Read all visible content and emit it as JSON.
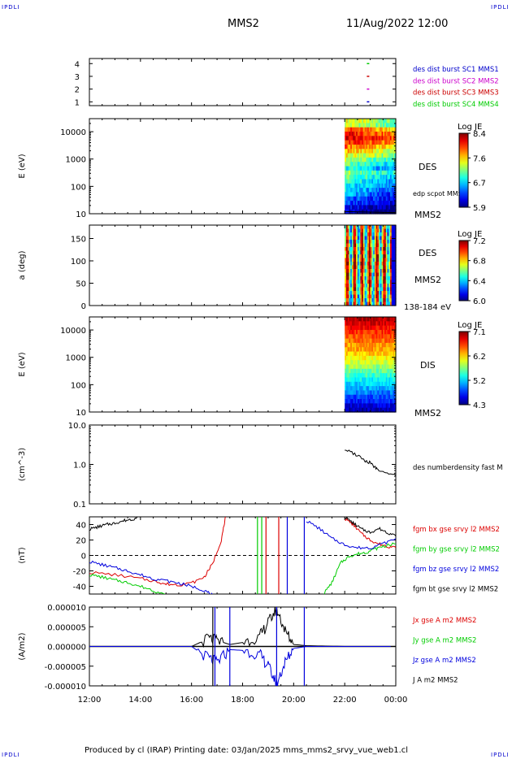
{
  "page": {
    "corner_label": "IPDLI",
    "spacecraft": "MMS2",
    "date_time": "11/Aug/2022 12:00",
    "footer": "Produced by cl (IRAP)   Printing date: 03/Jan/2025   mms_mms2_srvy_vue_web1.cl"
  },
  "colors": {
    "mms1": "#0000cc",
    "mms2": "#cc00cc",
    "mms3": "#cc0000",
    "mms4": "#00cc00",
    "bx": "#dd0000",
    "by": "#00cc00",
    "bz": "#0000dd",
    "bt": "#000000"
  },
  "chart_data": [
    {
      "id": "availability",
      "type": "scatter",
      "xlim": [
        "12:00",
        "00:00"
      ],
      "ylim": [
        0.7,
        4.4
      ],
      "yticks": [
        "1",
        "2",
        "3",
        "4"
      ],
      "legend": [
        "des dist burst SC1 MMS1",
        "des dist burst SC2 MMS2",
        "des dist burst SC3 MMS3",
        "des dist burst SC4 MMS4"
      ],
      "series": [
        {
          "sc": 1,
          "x": [
            "22:52"
          ]
        },
        {
          "sc": 2,
          "x": [
            "22:52"
          ]
        },
        {
          "sc": 3,
          "x": [
            "22:52"
          ]
        },
        {
          "sc": 4,
          "x": [
            "22:52"
          ]
        }
      ]
    },
    {
      "id": "des-energy",
      "type": "heatmap",
      "ylabel": "E (eV)",
      "yscale": "log",
      "ylim": [
        10,
        30000
      ],
      "yticks": [
        "10",
        "100",
        "1000",
        "10000"
      ],
      "label": "DES",
      "overlay_label": "edp scpot MMS2",
      "sc_label": "MMS2",
      "colorbar": {
        "title": "Log JE",
        "min": 5.9,
        "max": 8.4,
        "ticks": [
          "8.4",
          "7.6",
          "6.7",
          "5.9"
        ]
      },
      "data_start": "22:00",
      "data_end": "00:00"
    },
    {
      "id": "des-pitch",
      "type": "heatmap",
      "ylabel": "a (deg)",
      "ylim": [
        0,
        180
      ],
      "yticks": [
        "0",
        "50",
        "100",
        "150"
      ],
      "label": "DES",
      "sc_label": "MMS2",
      "energy_label": "138-184 eV",
      "colorbar": {
        "title": "Log JE",
        "min": 6.0,
        "max": 7.2,
        "ticks": [
          "7.2",
          "6.8",
          "6.4",
          "6.0"
        ]
      },
      "data_start": "22:00",
      "data_end": "00:00"
    },
    {
      "id": "dis-energy",
      "type": "heatmap",
      "ylabel": "E (eV)",
      "yscale": "log",
      "ylim": [
        10,
        30000
      ],
      "yticks": [
        "10",
        "100",
        "1000",
        "10000"
      ],
      "label": "DIS",
      "sc_label": "MMS2",
      "colorbar": {
        "title": "Log JE",
        "min": 4.3,
        "max": 7.1,
        "ticks": [
          "7.1",
          "6.2",
          "5.2",
          "4.3"
        ]
      },
      "data_start": "22:00",
      "data_end": "00:00"
    },
    {
      "id": "density",
      "type": "line",
      "ylabel": "(cm^-3)",
      "yscale": "log",
      "ylim": [
        0.1,
        10.0
      ],
      "yticks": [
        "0.1",
        "1.0",
        "10.0"
      ],
      "legend": [
        "des numberdensity fast M"
      ],
      "series": [
        {
          "name": "des numberdensity fast M",
          "x": [
            "22:00",
            "22:20",
            "22:40",
            "22:50",
            "23:00",
            "23:10",
            "23:20",
            "23:40",
            "00:00"
          ],
          "y": [
            2.4,
            1.9,
            1.5,
            1.2,
            1.1,
            0.85,
            0.75,
            0.6,
            0.52
          ]
        }
      ]
    },
    {
      "id": "fgm",
      "type": "line",
      "ylabel": "(nT)",
      "ylim": [
        -50,
        50
      ],
      "yticks": [
        "-40",
        "-20",
        "0",
        "20",
        "40"
      ],
      "legend": [
        "fgm bx gse srvy l2 MMS2",
        "fgm by gse srvy l2 MMS2",
        "fgm bz gse srvy l2 MMS2",
        "fgm bt gse srvy l2 MMS2"
      ],
      "series": [
        {
          "name": "fgm bx gse srvy l2 MMS2",
          "x": [
            "12:00",
            "13:00",
            "14:00",
            "14:40",
            "15:00",
            "15:30",
            "16:00",
            "16:30",
            "16:50",
            "17:10",
            "17:20"
          ],
          "y": [
            -22,
            -25,
            -30,
            -34,
            -37,
            -38,
            -36,
            -28,
            -10,
            20,
            50
          ]
        },
        {
          "name": "fgm by gse srvy l2 MMS2",
          "x": [
            "12:00",
            "12:30",
            "13:00",
            "13:30",
            "14:00",
            "14:30",
            "15:00"
          ],
          "y": [
            -25,
            -28,
            -32,
            -35,
            -40,
            -45,
            -52
          ]
        },
        {
          "name": "fgm bz gse srvy l2 MMS2",
          "x": [
            "12:00",
            "12:30",
            "13:00",
            "13:30",
            "14:00",
            "14:30",
            "15:00",
            "15:30",
            "16:00",
            "16:30",
            "16:50"
          ],
          "y": [
            -8,
            -12,
            -16,
            -20,
            -25,
            -30,
            -33,
            -36,
            -40,
            -45,
            -52
          ]
        },
        {
          "name": "fgm bt gse srvy l2 MMS2",
          "x": [
            "12:00",
            "12:20",
            "12:40",
            "13:00",
            "13:20",
            "13:40",
            "14:00"
          ],
          "y": [
            34,
            37,
            40,
            42,
            45,
            47,
            50
          ]
        }
      ],
      "late_series": [
        {
          "name": "bx",
          "x": [
            "22:00",
            "22:20",
            "22:40",
            "23:00",
            "23:20",
            "23:40",
            "00:00"
          ],
          "y": [
            48,
            40,
            28,
            20,
            15,
            12,
            10
          ]
        },
        {
          "name": "by",
          "x": [
            "21:10",
            "21:30",
            "21:50",
            "22:10",
            "22:30",
            "22:50",
            "23:10",
            "23:30",
            "00:00"
          ],
          "y": [
            -50,
            -35,
            -10,
            -1,
            2,
            4,
            8,
            12,
            15
          ]
        },
        {
          "name": "bz",
          "x": [
            "20:30",
            "21:00",
            "21:30",
            "22:00",
            "22:30",
            "23:00",
            "23:30",
            "00:00"
          ],
          "y": [
            45,
            35,
            22,
            14,
            10,
            10,
            15,
            22
          ]
        },
        {
          "name": "bt",
          "x": [
            "22:00",
            "22:20",
            "22:40",
            "23:00",
            "23:20",
            "23:40",
            "00:00"
          ],
          "y": [
            50,
            42,
            34,
            30,
            35,
            30,
            25
          ]
        }
      ]
    },
    {
      "id": "current",
      "type": "line",
      "ylabel": "(A/m2)",
      "ylim": [
        -1e-05,
        1e-05
      ],
      "yticks": [
        "-0.000010",
        "-0.000005",
        "0.000000",
        "0.000005",
        "0.000010"
      ],
      "xticks": [
        "12:00",
        "14:00",
        "16:00",
        "18:00",
        "20:00",
        "22:00",
        "00:00"
      ],
      "legend": [
        "Jx gse A m2 MMS2",
        "Jy gse A m2 MMS2",
        "Jz gse A m2 MMS2",
        "J A m2 MMS2"
      ],
      "series": [
        {
          "name": "J A m2 MMS2",
          "x": [
            "12:00",
            "16:00",
            "16:40",
            "17:00",
            "17:30",
            "18:00",
            "18:40",
            "19:00",
            "19:20",
            "19:40",
            "20:00",
            "20:30",
            "22:00",
            "00:00"
          ],
          "y": [
            0,
            0,
            2e-06,
            1.5e-06,
            5e-07,
            1e-06,
            2.5e-06,
            6e-06,
            9.5e-06,
            4e-06,
            5e-07,
            2e-07,
            0,
            0
          ]
        },
        {
          "name": "Jz gse A m2 MMS2",
          "x": [
            "12:00",
            "16:00",
            "16:40",
            "17:00",
            "17:30",
            "18:00",
            "18:40",
            "19:00",
            "19:20",
            "19:40",
            "20:00",
            "20:30",
            "22:00",
            "00:00"
          ],
          "y": [
            0,
            0,
            -3e-06,
            -4e-06,
            -8e-07,
            -1e-06,
            -2e-06,
            -5e-06,
            -9.5e-06,
            -4e-06,
            -5e-07,
            0,
            0,
            0
          ]
        }
      ]
    }
  ]
}
